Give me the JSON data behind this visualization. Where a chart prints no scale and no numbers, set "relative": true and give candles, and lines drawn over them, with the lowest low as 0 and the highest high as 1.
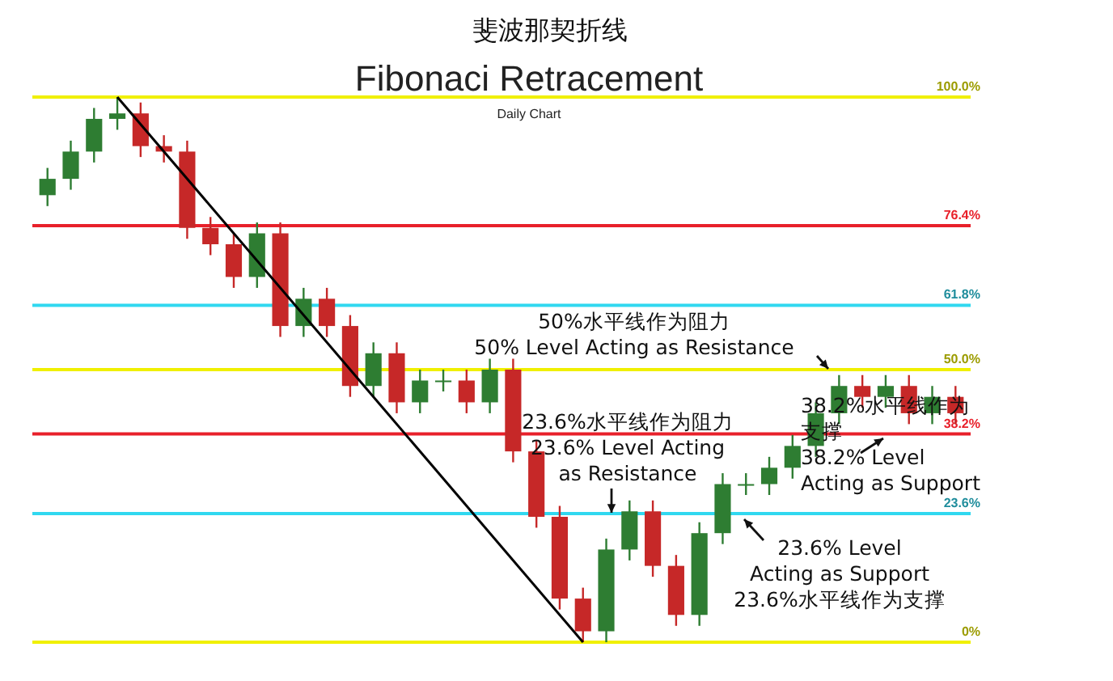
{
  "chart_data": {
    "type": "candlestick",
    "title": "Fibonaci Retracement",
    "subtitle": "Daily Chart",
    "relative": true,
    "categories": [
      null,
      null,
      null,
      null,
      null,
      null,
      null,
      null,
      null,
      null,
      null,
      null,
      null,
      null,
      null,
      null,
      null,
      null,
      null,
      null,
      null,
      null,
      null,
      null,
      null,
      null,
      null,
      null,
      null,
      null,
      null,
      null,
      null,
      null,
      null,
      null,
      null,
      null,
      null,
      null
    ],
    "ohlc": [
      [
        0.82,
        0.87,
        0.8,
        0.85
      ],
      [
        0.85,
        0.92,
        0.83,
        0.9
      ],
      [
        0.9,
        0.98,
        0.88,
        0.96
      ],
      [
        0.96,
        1.0,
        0.94,
        0.97
      ],
      [
        0.97,
        0.99,
        0.89,
        0.91
      ],
      [
        0.91,
        0.93,
        0.88,
        0.9
      ],
      [
        0.9,
        0.92,
        0.74,
        0.76
      ],
      [
        0.76,
        0.78,
        0.71,
        0.73
      ],
      [
        0.73,
        0.75,
        0.65,
        0.67
      ],
      [
        0.67,
        0.77,
        0.65,
        0.75
      ],
      [
        0.75,
        0.77,
        0.56,
        0.58
      ],
      [
        0.58,
        0.65,
        0.56,
        0.63
      ],
      [
        0.63,
        0.65,
        0.56,
        0.58
      ],
      [
        0.58,
        0.6,
        0.45,
        0.47
      ],
      [
        0.47,
        0.55,
        0.45,
        0.53
      ],
      [
        0.53,
        0.55,
        0.42,
        0.44
      ],
      [
        0.44,
        0.5,
        0.42,
        0.48
      ],
      [
        0.48,
        0.5,
        0.46,
        0.48
      ],
      [
        0.48,
        0.5,
        0.42,
        0.44
      ],
      [
        0.44,
        0.52,
        0.42,
        0.5
      ],
      [
        0.5,
        0.52,
        0.33,
        0.35
      ],
      [
        0.35,
        0.37,
        0.21,
        0.23
      ],
      [
        0.23,
        0.25,
        0.06,
        0.08
      ],
      [
        0.08,
        0.1,
        0.0,
        0.02
      ],
      [
        0.02,
        0.19,
        0.0,
        0.17
      ],
      [
        0.17,
        0.26,
        0.15,
        0.24
      ],
      [
        0.24,
        0.26,
        0.12,
        0.14
      ],
      [
        0.14,
        0.16,
        0.03,
        0.05
      ],
      [
        0.05,
        0.22,
        0.03,
        0.2
      ],
      [
        0.2,
        0.31,
        0.18,
        0.29
      ],
      [
        0.29,
        0.31,
        0.27,
        0.29
      ],
      [
        0.29,
        0.34,
        0.27,
        0.32
      ],
      [
        0.32,
        0.38,
        0.3,
        0.36
      ],
      [
        0.36,
        0.44,
        0.34,
        0.42
      ],
      [
        0.42,
        0.49,
        0.4,
        0.47
      ],
      [
        0.47,
        0.49,
        0.43,
        0.45
      ],
      [
        0.45,
        0.49,
        0.43,
        0.47
      ],
      [
        0.47,
        0.49,
        0.4,
        0.42
      ],
      [
        0.42,
        0.47,
        0.4,
        0.45
      ],
      [
        0.45,
        0.47,
        0.4,
        0.42
      ]
    ],
    "series": [
      {
        "type": "line",
        "color": "#000000",
        "values": [
          null,
          null,
          null,
          1.0,
          null,
          null,
          null,
          null,
          null,
          null,
          null,
          null,
          null,
          null,
          null,
          null,
          null,
          null,
          null,
          null,
          null,
          null,
          null,
          0.0,
          null,
          null,
          null,
          null,
          null,
          null,
          null,
          null,
          null,
          null,
          null,
          null,
          null,
          null,
          null,
          null
        ]
      }
    ],
    "ref_lines": [
      {
        "axis": "y",
        "value": 1.0,
        "label": "100.0%",
        "color": "#f0f000"
      },
      {
        "axis": "y",
        "value": 0.764,
        "label": "76.4%",
        "color": "#e8202a"
      },
      {
        "axis": "y",
        "value": 0.618,
        "label": "61.8%",
        "color": "#30d8f0"
      },
      {
        "axis": "y",
        "value": 0.5,
        "label": "50.0%",
        "color": "#f0f000"
      },
      {
        "axis": "y",
        "value": 0.382,
        "label": "38.2%",
        "color": "#e8202a"
      },
      {
        "axis": "y",
        "value": 0.236,
        "label": "23.6%",
        "color": "#30d8f0"
      },
      {
        "axis": "y",
        "value": 0.0,
        "label": "0%",
        "color": "#f0f000"
      }
    ],
    "annotations": [
      "斐波那契折线",
      "50%水平线作为阻力\n50% Level Acting as Resistance",
      "23.6%水平线作为阻力\n23.6% Level Acting\nas Resistance",
      "38.2%水平线作为支撑\n38.2% Level\nActing as Support",
      "23.6% Level\nActing as Support\n23.6%水平线作为支撑"
    ]
  }
}
